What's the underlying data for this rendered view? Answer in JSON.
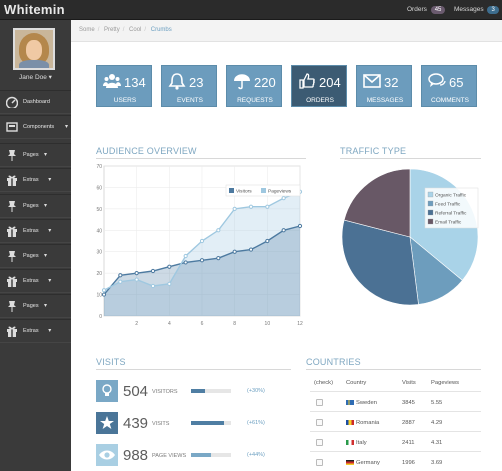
{
  "topbar": {
    "brand": "Whitemin",
    "orders_label": "Orders",
    "orders_count": "45",
    "messages_label": "Messages",
    "messages_count": "3"
  },
  "user": {
    "name": "Jane Doe"
  },
  "sidebar": {
    "items": [
      {
        "label": "Dashboard",
        "icon": "dashboard-icon"
      },
      {
        "label": "Components",
        "icon": "components-icon"
      },
      {
        "label": "Pages",
        "icon": "pin-icon"
      },
      {
        "label": "Extras",
        "icon": "gift-icon"
      },
      {
        "label": "Pages",
        "icon": "pin-icon"
      },
      {
        "label": "Extras",
        "icon": "gift-icon"
      },
      {
        "label": "Pages",
        "icon": "pin-icon"
      },
      {
        "label": "Extras",
        "icon": "gift-icon"
      },
      {
        "label": "Pages",
        "icon": "pin-icon"
      },
      {
        "label": "Extras",
        "icon": "gift-icon"
      }
    ]
  },
  "breadcrumb": [
    "Some",
    "Pretty",
    "Cool",
    "Crumbs"
  ],
  "tiles": [
    {
      "value": "134",
      "label": "USERS",
      "icon": "users-icon",
      "color": "#6c9cbd"
    },
    {
      "value": "23",
      "label": "EVENTS",
      "icon": "bell-icon",
      "color": "#6c9cbd"
    },
    {
      "value": "220",
      "label": "REQUESTS",
      "icon": "umbrella-icon",
      "color": "#6c9cbd"
    },
    {
      "value": "204",
      "label": "ORDERS",
      "icon": "thumbs-up-icon",
      "color": "#3c5b73"
    },
    {
      "value": "32",
      "label": "MESSAGES",
      "icon": "envelope-icon",
      "color": "#6c9cbd"
    },
    {
      "value": "65",
      "label": "COMMENTS",
      "icon": "comments-icon",
      "color": "#6c9cbd"
    }
  ],
  "audience": {
    "title": "AUDIENCE OVERVIEW"
  },
  "traffic": {
    "title": "TRAFFIC TYPE"
  },
  "chart_data": [
    {
      "type": "area",
      "xlim": [
        0,
        12
      ],
      "ylim": [
        0,
        70
      ],
      "x_ticks": [
        2,
        4,
        6,
        8,
        10,
        12
      ],
      "y_ticks": [
        0,
        10,
        20,
        30,
        40,
        50,
        60,
        70
      ],
      "legend_position": "top-right",
      "grid": true,
      "series": [
        {
          "name": "Visitors",
          "color": "#4d7aa0",
          "x": [
            0,
            1,
            2,
            3,
            4,
            5,
            6,
            7,
            8,
            9,
            10,
            11,
            12
          ],
          "y": [
            10,
            19,
            20,
            21,
            23,
            25,
            26,
            27,
            30,
            31,
            35,
            40,
            42
          ]
        },
        {
          "name": "Pageviews",
          "color": "#9fc8e0",
          "x": [
            0,
            1,
            2,
            3,
            4,
            5,
            6,
            7,
            8,
            9,
            10,
            11,
            12
          ],
          "y": [
            12,
            16,
            17,
            14,
            15,
            28,
            35,
            40,
            50,
            51,
            51,
            55,
            58
          ]
        }
      ]
    },
    {
      "type": "pie",
      "legend_position": "top-right",
      "labels": [
        "Organic Traffic",
        "Feed Traffic",
        "Referral Traffic",
        "Email Traffic"
      ],
      "values": [
        36,
        12,
        31,
        21
      ],
      "colors": [
        "#a9d3e8",
        "#6d9dbd",
        "#4b7194",
        "#685866"
      ]
    }
  ],
  "visits": {
    "title": "VISITS",
    "rows": [
      {
        "value": "504",
        "label": "VISITORS",
        "change": "(+30%)",
        "fill": 0.35,
        "icon": "lightbulb-icon",
        "color": "#7aa8c6"
      },
      {
        "value": "439",
        "label": "VISITS",
        "change": "(+61%)",
        "fill": 0.82,
        "icon": "star-icon",
        "color": "#4a7598"
      },
      {
        "value": "988",
        "label": "PAGE VIEWS",
        "change": "(+44%)",
        "fill": 0.5,
        "icon": "eye-icon",
        "color": "#a9cfe3"
      }
    ]
  },
  "countries": {
    "title": "COUNTRIES",
    "columns": [
      "(check)",
      "Country",
      "Visits",
      "Pageviews"
    ],
    "rows": [
      {
        "country": "Sweden",
        "visits": "3845",
        "pageviews": "5.55",
        "flag": [
          "#2f6cb3",
          "#f5cc26"
        ]
      },
      {
        "country": "Romania",
        "visits": "2887",
        "pageviews": "4.29",
        "flag": [
          "#1d4fa3",
          "#f5d02a",
          "#cc2a2a"
        ]
      },
      {
        "country": "Italy",
        "visits": "2411",
        "pageviews": "4.31",
        "flag": [
          "#2a9a4a",
          "#ffffff",
          "#d03030"
        ]
      },
      {
        "country": "Germany",
        "visits": "1996",
        "pageviews": "3.69",
        "flag": [
          "#222222",
          "#cc2a2a",
          "#f5cc26"
        ]
      }
    ]
  }
}
